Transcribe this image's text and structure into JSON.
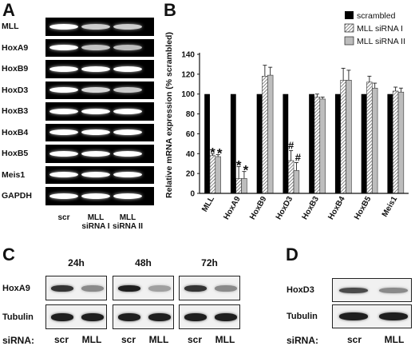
{
  "panels": {
    "a": "A",
    "b": "B",
    "c": "C",
    "d": "D"
  },
  "gel": {
    "genes": [
      "MLL",
      "HoxA9",
      "HoxB9",
      "HoxD3",
      "HoxB3",
      "HoxB4",
      "HoxB5",
      "Meis1",
      "GAPDH"
    ],
    "lanes": [
      "scr",
      "MLL\nsiRNA I",
      "MLL\nsiRNA II"
    ],
    "band_intensity": [
      [
        1.0,
        0.62,
        0.62
      ],
      [
        1.0,
        0.55,
        0.5
      ],
      [
        1.0,
        1.0,
        1.0
      ],
      [
        1.0,
        0.7,
        0.6
      ],
      [
        1.0,
        1.0,
        1.0
      ],
      [
        1.0,
        1.0,
        1.0
      ],
      [
        1.0,
        1.0,
        1.0
      ],
      [
        1.0,
        1.0,
        1.0
      ],
      [
        1.0,
        1.0,
        1.0
      ]
    ]
  },
  "chart_data": {
    "type": "bar",
    "categories": [
      "MLL",
      "HoxA9",
      "HoxB9",
      "HoxD3",
      "HoxB3",
      "HoxB4",
      "HoxB5",
      "Meis1"
    ],
    "series": [
      {
        "name": "scrambled",
        "values": [
          100,
          100,
          100,
          100,
          100,
          100,
          100,
          100
        ],
        "errors": [
          0,
          0,
          0,
          0,
          0,
          0,
          0,
          0
        ],
        "color": "#000000",
        "pattern": "solid"
      },
      {
        "name": "MLL siRNA I",
        "values": [
          38,
          15,
          118,
          33,
          97,
          114,
          112,
          103
        ],
        "errors": [
          2,
          12,
          11,
          10,
          3,
          12,
          6,
          4
        ],
        "color": "#cfcfcf",
        "pattern": "hatch"
      },
      {
        "name": "MLL siRNA II",
        "values": [
          37,
          15,
          119,
          23,
          95,
          114,
          106,
          102
        ],
        "errors": [
          2,
          7,
          8,
          8,
          2,
          10,
          5,
          4
        ],
        "color": "#bdbdbd",
        "pattern": "solid-grey"
      }
    ],
    "annotations": [
      {
        "category": "MLL",
        "series": 1,
        "text": "*"
      },
      {
        "category": "MLL",
        "series": 2,
        "text": "*"
      },
      {
        "category": "HoxA9",
        "series": 1,
        "text": "*"
      },
      {
        "category": "HoxA9",
        "series": 2,
        "text": "*"
      },
      {
        "category": "HoxD3",
        "series": 1,
        "text": "#"
      },
      {
        "category": "HoxD3",
        "series": 2,
        "text": "#"
      }
    ],
    "title": "",
    "xlabel": "",
    "ylabel": "Relative mRNA expression (% scrambled)",
    "ylim": [
      0,
      140
    ],
    "yticks": [
      0,
      20,
      40,
      60,
      80,
      100,
      120,
      140
    ],
    "grid": false,
    "legend_position": "top-right"
  },
  "western_c": {
    "timepoints": [
      "24h",
      "48h",
      "72h"
    ],
    "rows": [
      "HoxA9",
      "Tubulin"
    ],
    "lanes": [
      "scr",
      "MLL"
    ],
    "sirna_label": "siRNA:"
  },
  "western_d": {
    "rows": [
      "HoxD3",
      "Tubulin"
    ],
    "lanes": [
      "scr",
      "MLL"
    ],
    "sirna_label": "siRNA:"
  }
}
